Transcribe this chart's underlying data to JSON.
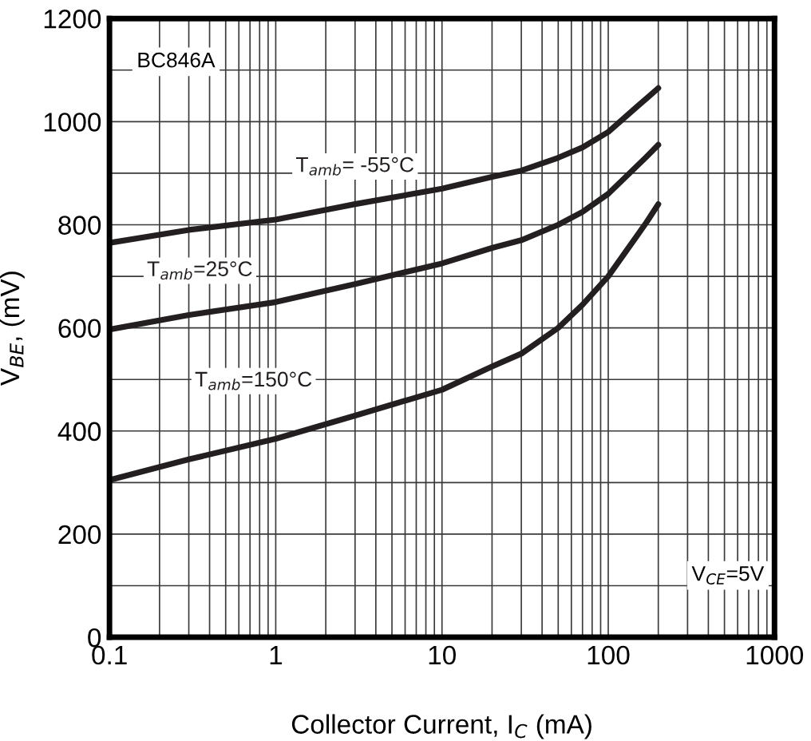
{
  "chart_data": {
    "type": "line",
    "xlabel": "Collector Current, I$_{C}$ (mA)",
    "ylabel": "V$_{BE}$, (mV)",
    "log": "x",
    "grid": true,
    "xlim": [
      0.1,
      1000
    ],
    "xticks": [
      0.1,
      1,
      10,
      100,
      1000
    ],
    "ylim": [
      0,
      1200
    ],
    "yticks": [
      0,
      {
        "value": 100,
        "label": null
      },
      200,
      {
        "value": 300,
        "label": null
      },
      400,
      {
        "value": 500,
        "label": null
      },
      600,
      {
        "value": 700,
        "label": null
      },
      800,
      {
        "value": 900,
        "label": null
      },
      1000,
      {
        "value": 1100,
        "label": null
      },
      1200
    ],
    "x": [
      0.1,
      0.3,
      1,
      3,
      10,
      20,
      30,
      50,
      70,
      100,
      150,
      170,
      200
    ],
    "series": [
      {
        "name": "T$_{amb}$= -55°C",
        "color": "#231f20",
        "values": [
          765,
          790,
          810,
          840,
          870,
          893,
          905,
          930,
          950,
          980,
          1030,
          1045,
          1065
        ]
      },
      {
        "name": "T$_{amb}$=25°C",
        "color": "#231f20",
        "values": [
          597,
          625,
          650,
          685,
          725,
          755,
          770,
          800,
          825,
          860,
          915,
          932,
          955
        ]
      },
      {
        "name": "T$_{amb}$=150°C",
        "color": "#231f20",
        "values": [
          305,
          345,
          385,
          430,
          480,
          525,
          550,
          600,
          645,
          700,
          780,
          805,
          840
        ]
      }
    ],
    "annotations": [
      "BC846A",
      "V$_{CE}$=5V"
    ]
  }
}
